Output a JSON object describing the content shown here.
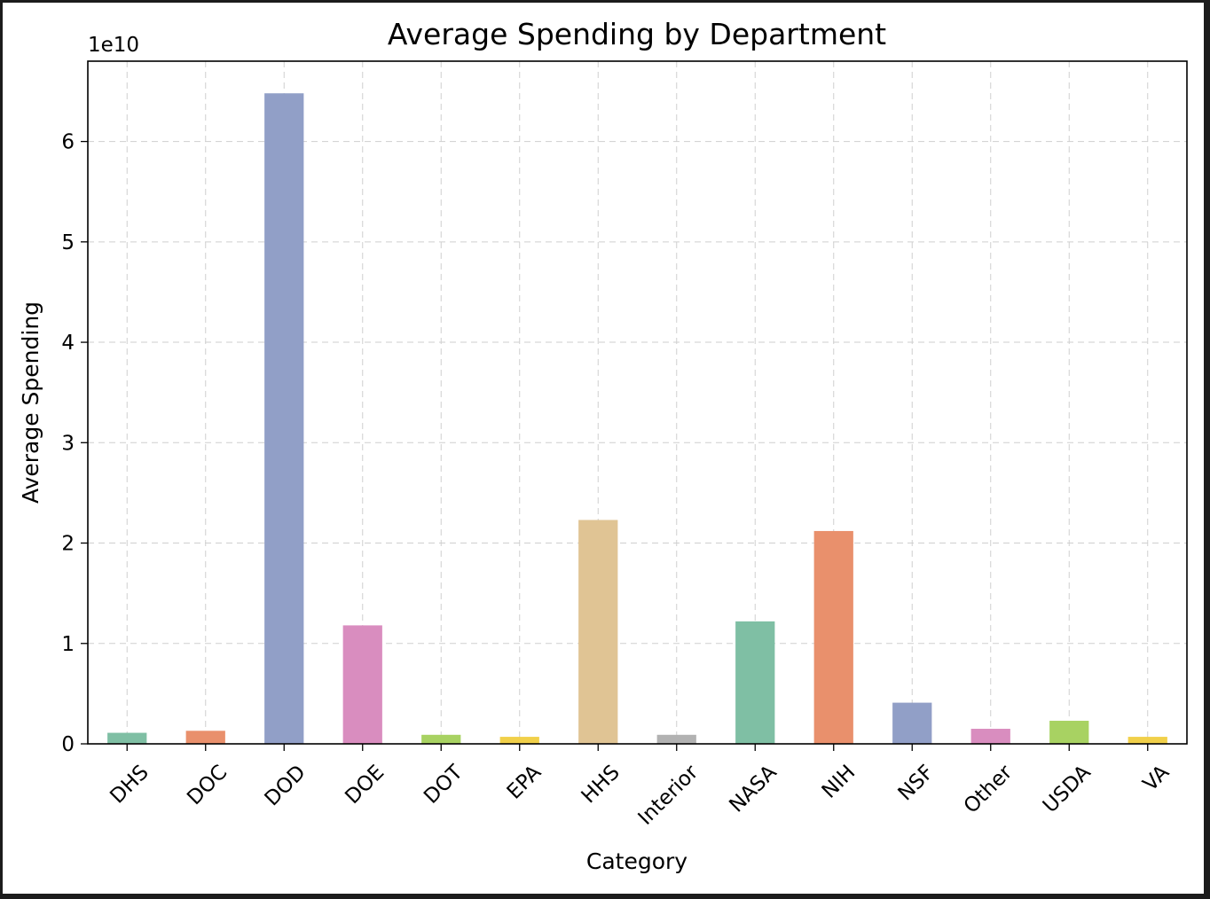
{
  "chart_data": {
    "type": "bar",
    "title": "Average Spending by Department",
    "xlabel": "Category",
    "ylabel": "Average Spending",
    "y_offset_label": "1e10",
    "y_scale": 10000000000,
    "ylim": [
      0,
      68000000000
    ],
    "yticks": [
      0,
      10000000000,
      20000000000,
      30000000000,
      40000000000,
      50000000000,
      60000000000
    ],
    "ytick_labels": [
      "0",
      "1",
      "2",
      "3",
      "4",
      "5",
      "6"
    ],
    "grid": true,
    "legend": "none",
    "categories": [
      "DHS",
      "DOC",
      "DOD",
      "DOE",
      "DOT",
      "EPA",
      "HHS",
      "Interior",
      "NASA",
      "NIH",
      "NSF",
      "Other",
      "USDA",
      "VA"
    ],
    "values": [
      1100000000,
      1300000000,
      64800000000,
      11800000000,
      900000000,
      700000000,
      22300000000,
      900000000,
      12200000000,
      21200000000,
      4100000000,
      1500000000,
      2300000000,
      700000000
    ],
    "colors": [
      "#7fbfa4",
      "#e9906c",
      "#919fc7",
      "#d98dbf",
      "#a8d262",
      "#f1d04a",
      "#e0c494",
      "#b2b2b2",
      "#7fbfa4",
      "#e9906c",
      "#919fc7",
      "#d98dbf",
      "#a8d262",
      "#f1d04a"
    ]
  }
}
